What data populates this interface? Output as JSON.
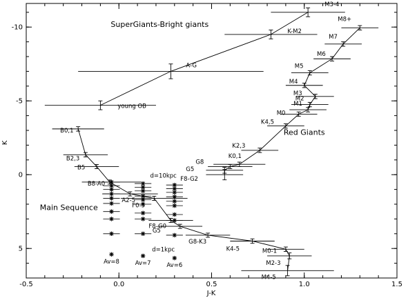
{
  "chart_data": {
    "type": "scatter",
    "title": "",
    "xlabel": "J-K",
    "ylabel": "K",
    "xlim": [
      -0.5,
      1.5
    ],
    "ylim": [
      7.0,
      -11.6
    ],
    "grid": false,
    "xticks": [
      -0.5,
      0.0,
      0.5,
      1.0,
      1.5
    ],
    "xtick_labels": [
      "-0.5",
      "0.0",
      "0.5",
      "1.0",
      "1.5"
    ],
    "yticks": [
      -10,
      -5,
      0,
      5
    ],
    "ytick_labels": [
      "-10",
      "-5",
      "0",
      "5"
    ],
    "region_labels": [
      {
        "text": "SuperGiants-Bright giants",
        "x": 0.22,
        "y": -10.0
      },
      {
        "text": "Red Giants",
        "x": 1.0,
        "y": -2.7
      },
      {
        "text": "Main Sequence",
        "x": -0.27,
        "y": 2.4
      },
      {
        "text": "d=10kpc",
        "x": 0.24,
        "y": 0.2
      },
      {
        "text": "d=1kpc",
        "x": 0.24,
        "y": 5.2
      }
    ],
    "series": [
      {
        "name": "Main Sequence",
        "points": [
          {
            "label": "B0,1",
            "x": -0.22,
            "y": -3.1,
            "xerr": [
              0.14,
              0.14
            ],
            "yerr": 0.15
          },
          {
            "label": "B2,3",
            "x": -0.18,
            "y": -1.35,
            "xerr": [
              0.12,
              0.12
            ],
            "yerr": 0.15
          },
          {
            "label": "B5",
            "x": -0.12,
            "y": -0.55,
            "xerr": [
              0.12,
              0.12
            ],
            "yerr": 0.1
          },
          {
            "label": "B8-A0",
            "x": -0.05,
            "y": 0.5,
            "xerr": [
              0.15,
              0.17
            ],
            "yerr": 0.1
          },
          {
            "label": "A2-5",
            "x": 0.06,
            "y": 1.3,
            "xerr": [
              0.15,
              0.15
            ],
            "yerr": 0.1
          },
          {
            "label": "F0-5",
            "x": 0.19,
            "y": 1.6,
            "xerr": [
              0.18,
              0.18
            ],
            "yerr": 0.1
          },
          {
            "label": "F8-G0",
            "x": 0.28,
            "y": 3.1,
            "xerr": [
              0.12,
              0.12
            ],
            "yerr": 0.1
          },
          {
            "label": "G5",
            "x": 0.33,
            "y": 3.5,
            "xerr": [
              0.12,
              0.12
            ],
            "yerr": 0.1
          },
          {
            "label": "G8-K3",
            "x": 0.48,
            "y": 4.1,
            "xerr": [
              0.12,
              0.12
            ],
            "yerr": 0.1
          },
          {
            "label": "K4-5",
            "x": 0.72,
            "y": 4.5,
            "xerr": [
              0.12,
              0.12
            ],
            "yerr": 0.15
          },
          {
            "label": "M0-1",
            "x": 0.9,
            "y": 5.05,
            "xerr": [
              0.1,
              0.1
            ],
            "yerr": 0.15
          },
          {
            "label": "M2-3",
            "x": 0.92,
            "y": 5.5,
            "xerr": [
              0.12,
              0.12
            ],
            "yerr": 0.2
          },
          {
            "label": "M4-5",
            "x": 0.91,
            "y": 6.5,
            "xerr": [
              0.25,
              0.25
            ],
            "yerr": 0.35
          }
        ]
      },
      {
        "name": "Red Giants",
        "points": [
          {
            "label": "F8-G2",
            "x": 0.57,
            "y": 0.0,
            "xerr": [
              0.1,
              0.1
            ],
            "yerr": 0.35
          },
          {
            "label": "G5",
            "x": 0.57,
            "y": -0.3,
            "xerr": [
              0.1,
              0.1
            ],
            "yerr": 0.2
          },
          {
            "label": "G8",
            "x": 0.6,
            "y": -0.55,
            "xerr": [
              0.12,
              0.12
            ],
            "yerr": 0.1
          },
          {
            "label": "K0,1",
            "x": 0.65,
            "y": -0.7,
            "xerr": [
              0.14,
              0.14
            ],
            "yerr": 0.15
          },
          {
            "label": "K2,3",
            "x": 0.76,
            "y": -1.65,
            "xerr": [
              0.1,
              0.1
            ],
            "yerr": 0.15
          },
          {
            "label": "K4,5",
            "x": 0.9,
            "y": -3.3,
            "xerr": [
              0.1,
              0.1
            ],
            "yerr": 0.15
          },
          {
            "label": "M0",
            "x": 0.97,
            "y": -4.1,
            "xerr": [
              0.1,
              0.1
            ],
            "yerr": 0.15
          },
          {
            "label": "M1",
            "x": 1.02,
            "y": -4.4,
            "xerr": [
              0.1,
              0.1
            ],
            "yerr": 0.15
          },
          {
            "label": "M2",
            "x": 1.03,
            "y": -4.75,
            "xerr": [
              0.1,
              0.1
            ],
            "yerr": 0.15
          },
          {
            "label": "M3",
            "x": 1.06,
            "y": -5.3,
            "xerr": [
              0.1,
              0.1
            ],
            "yerr": 0.15
          },
          {
            "label": "M4",
            "x": 1.0,
            "y": -6.05,
            "xerr": [
              0.1,
              0.1
            ],
            "yerr": 0.15
          },
          {
            "label": "M5",
            "x": 1.03,
            "y": -6.9,
            "xerr": [
              0.1,
              0.1
            ],
            "yerr": 0.15
          },
          {
            "label": "M6",
            "x": 1.15,
            "y": -7.85,
            "xerr": [
              0.1,
              0.1
            ],
            "yerr": 0.15
          },
          {
            "label": "M7",
            "x": 1.21,
            "y": -8.85,
            "xerr": [
              0.1,
              0.1
            ],
            "yerr": 0.15
          },
          {
            "label": "M8+",
            "x": 1.3,
            "y": -9.95,
            "xerr": [
              0.1,
              0.1
            ],
            "yerr": 0.15
          }
        ]
      },
      {
        "name": "SuperGiants-Bright giants",
        "points": [
          {
            "label": "young OB",
            "x": -0.1,
            "y": -4.7,
            "xerr": [
              0.3,
              0.3
            ],
            "yerr": 0.3
          },
          {
            "label": "A-G",
            "x": 0.28,
            "y": -7.0,
            "xerr": [
              0.5,
              0.5
            ],
            "yerr": 0.5
          },
          {
            "label": "K-M2",
            "x": 0.82,
            "y": -9.5,
            "xerr": [
              0.25,
              0.25
            ],
            "yerr": 0.3
          },
          {
            "label": "M3-4",
            "x": 1.02,
            "y": -11.0,
            "xerr": [
              0.2,
              0.2
            ],
            "yerr": 0.3
          }
        ]
      },
      {
        "name": "Av=8",
        "points": [
          {
            "x": -0.04,
            "y": 0.5
          },
          {
            "x": -0.04,
            "y": 0.75
          },
          {
            "x": -0.04,
            "y": 1.0
          },
          {
            "x": -0.04,
            "y": 1.3
          },
          {
            "x": -0.04,
            "y": 1.6
          },
          {
            "x": -0.04,
            "y": 1.95
          },
          {
            "x": -0.04,
            "y": 2.5
          },
          {
            "x": -0.04,
            "y": 3.0
          },
          {
            "x": -0.04,
            "y": 4.0
          },
          {
            "x": -0.04,
            "y": 5.4
          }
        ]
      },
      {
        "name": "Av=7",
        "points": [
          {
            "x": 0.13,
            "y": 0.6
          },
          {
            "x": 0.13,
            "y": 0.85
          },
          {
            "x": 0.13,
            "y": 1.1
          },
          {
            "x": 0.13,
            "y": 1.45
          },
          {
            "x": 0.13,
            "y": 1.7
          },
          {
            "x": 0.13,
            "y": 2.0
          },
          {
            "x": 0.13,
            "y": 2.6
          },
          {
            "x": 0.13,
            "y": 3.0
          },
          {
            "x": 0.13,
            "y": 4.0
          },
          {
            "x": 0.13,
            "y": 5.5
          }
        ]
      },
      {
        "name": "Av=6",
        "points": [
          {
            "x": 0.3,
            "y": 0.7
          },
          {
            "x": 0.3,
            "y": 0.95
          },
          {
            "x": 0.3,
            "y": 1.2
          },
          {
            "x": 0.3,
            "y": 1.5
          },
          {
            "x": 0.3,
            "y": 1.8
          },
          {
            "x": 0.3,
            "y": 2.1
          },
          {
            "x": 0.3,
            "y": 2.7
          },
          {
            "x": 0.3,
            "y": 3.1
          },
          {
            "x": 0.3,
            "y": 4.1
          },
          {
            "x": 0.3,
            "y": 5.65
          }
        ]
      }
    ]
  }
}
